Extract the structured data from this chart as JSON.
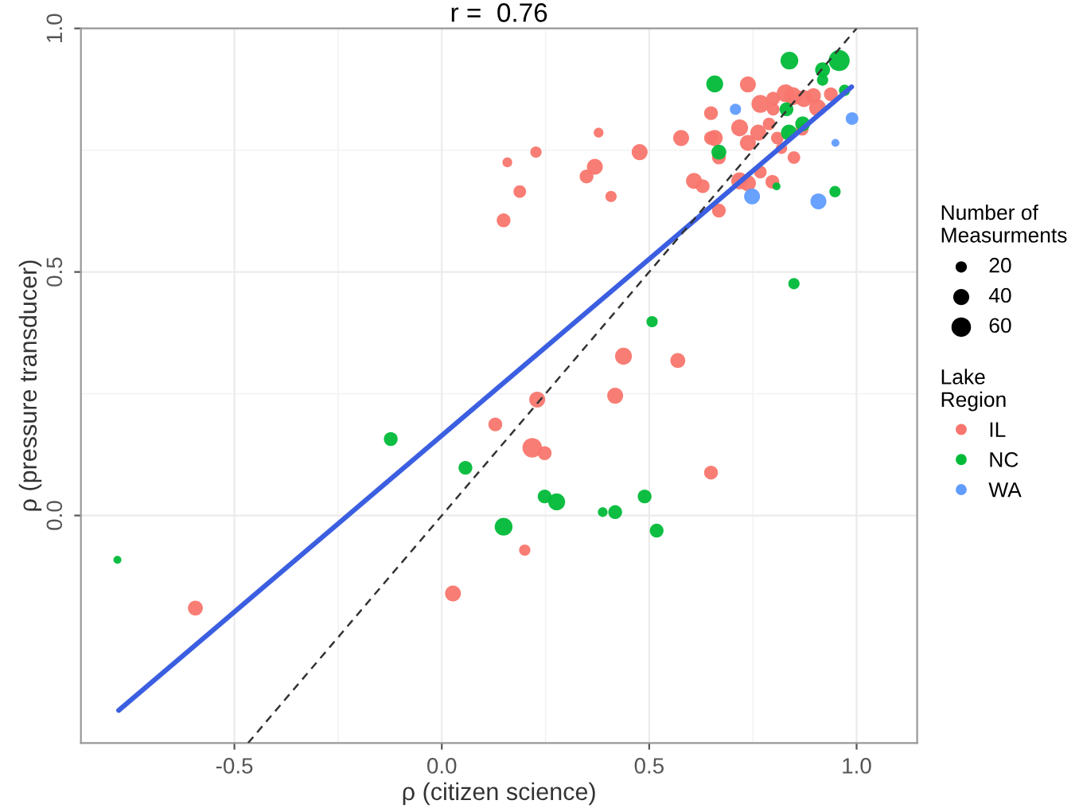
{
  "chart_data": {
    "type": "bubble",
    "title": "r =  0.76",
    "xlabel": "ρ (citizen science)",
    "ylabel": "ρ (pressure transducer)",
    "legend_title": "Lake Region",
    "annotations": [
      "Number of Measurments"
    ],
    "size_legend": [
      20,
      40,
      60
    ],
    "xlim": [
      -0.87,
      1.146
    ],
    "ylim": [
      -0.467,
      1.0
    ],
    "xticks": [
      -0.5,
      {
        "value": 0,
        "label": "0.0"
      },
      0.5,
      {
        "value": 1,
        "label": "1.0"
      }
    ],
    "yticks": [
      {
        "value": 0,
        "label": "0.0"
      },
      0.5,
      {
        "value": 1,
        "label": "1.0"
      }
    ],
    "grid": true,
    "legend": "right",
    "marker": "circle",
    "series": [
      {
        "name": "IL",
        "color": "#f8766d",
        "x": [
          0.738,
          0.649,
          0.768,
          0.799,
          0.799,
          0.829,
          0.846,
          0.873,
          0.896,
          0.938,
          0.906,
          0.869,
          0.718,
          0.738,
          0.763,
          0.789,
          0.809,
          0.849,
          0.819,
          0.768,
          0.718,
          0.738,
          0.797,
          0.668,
          0.658,
          0.649,
          0.577,
          0.477,
          0.378,
          0.369,
          0.349,
          0.408,
          0.227,
          0.188,
          0.608,
          0.629,
          0.668,
          0.438,
          0.569,
          0.158,
          0.149,
          0.23,
          0.418,
          0.218,
          0.248,
          0.649,
          0.2,
          0.129,
          -0.594,
          0.027
        ],
        "values": [
          0.885,
          0.826,
          0.845,
          0.856,
          0.834,
          0.867,
          0.861,
          0.856,
          0.862,
          0.865,
          0.837,
          0.793,
          0.796,
          0.765,
          0.786,
          0.804,
          0.775,
          0.735,
          0.754,
          0.705,
          0.687,
          0.682,
          0.685,
          0.735,
          0.775,
          0.775,
          0.775,
          0.746,
          0.786,
          0.716,
          0.696,
          0.655,
          0.746,
          0.665,
          0.687,
          0.676,
          0.626,
          0.327,
          0.318,
          0.725,
          0.606,
          0.238,
          0.246,
          0.139,
          0.128,
          0.088,
          -0.071,
          0.187,
          -0.19,
          -0.16
        ],
        "sizes": [
          40,
          30,
          50,
          30,
          25,
          50,
          50,
          45,
          35,
          30,
          45,
          25,
          45,
          40,
          40,
          25,
          25,
          25,
          20,
          25,
          45,
          40,
          30,
          30,
          40,
          30,
          40,
          40,
          15,
          40,
          30,
          20,
          20,
          25,
          40,
          30,
          30,
          45,
          35,
          15,
          30,
          40,
          40,
          60,
          30,
          30,
          20,
          30,
          35,
          40
        ]
      },
      {
        "name": "NC",
        "color": "#00ba38",
        "x": [
          0.838,
          0.958,
          0.918,
          0.918,
          0.658,
          0.831,
          0.87,
          0.837,
          0.971,
          0.807,
          0.948,
          0.668,
          0.849,
          0.507,
          0.248,
          0.277,
          0.388,
          0.418,
          0.489,
          0.518,
          -0.123,
          0.057,
          0.149,
          -0.782
        ],
        "values": [
          0.934,
          0.934,
          0.915,
          0.894,
          0.886,
          0.834,
          0.804,
          0.786,
          0.873,
          0.676,
          0.665,
          0.746,
          0.476,
          0.398,
          0.039,
          0.028,
          0.007,
          0.007,
          0.039,
          -0.031,
          0.157,
          0.098,
          -0.023,
          -0.091
        ],
        "sizes": [
          50,
          70,
          35,
          20,
          45,
          30,
          35,
          40,
          20,
          10,
          20,
          35,
          20,
          20,
          30,
          45,
          15,
          30,
          30,
          30,
          30,
          30,
          50,
          10
        ]
      },
      {
        "name": "WA",
        "color": "#619cff",
        "x": [
          0.708,
          0.989,
          0.949,
          0.748,
          0.908
        ],
        "values": [
          0.834,
          0.815,
          0.765,
          0.655,
          0.645
        ],
        "sizes": [
          20,
          25,
          10,
          40,
          40
        ]
      },
      {
        "type": "line",
        "color": "#3b5fe0",
        "x": [
          -0.779,
          0.988
        ],
        "values": [
          -0.4,
          0.88
        ],
        "line_style": "solid",
        "marker": "none"
      },
      {
        "type": "line",
        "color": "#333333",
        "x": [
          -0.467,
          1.0
        ],
        "values": [
          -0.467,
          1.0
        ],
        "line_style": "dashed",
        "marker": "none"
      }
    ]
  }
}
